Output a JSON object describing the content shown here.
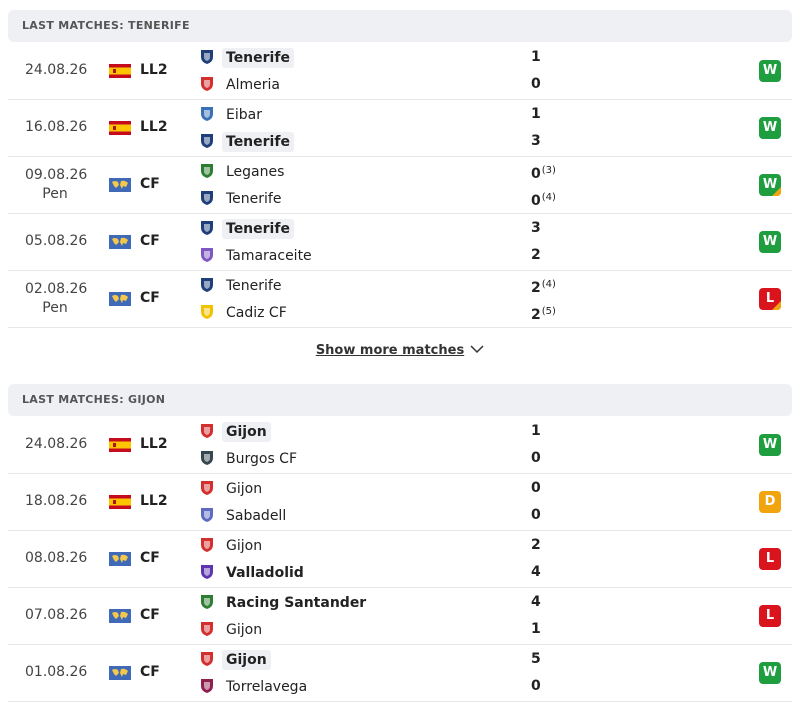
{
  "sections": [
    {
      "title": "LAST MATCHES: TENERIFE",
      "show_more": "Show more matches",
      "matches": [
        {
          "date": "24.08.26",
          "competition": "LL2",
          "flag": "spain",
          "home": {
            "name": "Tenerife",
            "bold": true,
            "highlight": true,
            "logo_color": "#1f3f7a"
          },
          "away": {
            "name": "Almeria",
            "bold": false,
            "highlight": false,
            "logo_color": "#d32f2f"
          },
          "home_score": 1,
          "away_score": 0,
          "result": "W",
          "result_color": "#1e9e3e"
        },
        {
          "date": "16.08.26",
          "competition": "LL2",
          "flag": "spain",
          "home": {
            "name": "Eibar",
            "bold": false,
            "highlight": false,
            "logo_color": "#3b6fb6"
          },
          "away": {
            "name": "Tenerife",
            "bold": true,
            "highlight": true,
            "logo_color": "#1f3f7a"
          },
          "home_score": 1,
          "away_score": 3,
          "result": "W",
          "result_color": "#1e9e3e"
        },
        {
          "date": "09.08.26",
          "status": "Pen",
          "competition": "CF",
          "flag": "world",
          "home": {
            "name": "Leganes",
            "bold": false,
            "highlight": false,
            "logo_color": "#2e7d32"
          },
          "away": {
            "name": "Tenerife",
            "bold": false,
            "highlight": false,
            "logo_color": "#1f3f7a"
          },
          "home_score": 0,
          "home_pen": "(3)",
          "away_score": 0,
          "away_pen": "(4)",
          "result": "W",
          "result_color": "#1e9e3e"
        },
        {
          "date": "05.08.26",
          "competition": "CF",
          "flag": "world",
          "home": {
            "name": "Tenerife",
            "bold": true,
            "highlight": true,
            "logo_color": "#1f3f7a"
          },
          "away": {
            "name": "Tamaraceite",
            "bold": false,
            "highlight": false,
            "logo_color": "#7e57c2"
          },
          "home_score": 3,
          "away_score": 2,
          "result": "W",
          "result_color": "#1e9e3e"
        },
        {
          "date": "02.08.26",
          "status": "Pen",
          "competition": "CF",
          "flag": "world",
          "home": {
            "name": "Tenerife",
            "bold": false,
            "highlight": false,
            "logo_color": "#1f3f7a"
          },
          "away": {
            "name": "Cadiz CF",
            "bold": false,
            "highlight": false,
            "logo_color": "#f2c200"
          },
          "home_score": 2,
          "home_pen": "(4)",
          "away_score": 2,
          "away_pen": "(5)",
          "result": "L",
          "result_color": "#d9141c"
        }
      ]
    },
    {
      "title": "LAST MATCHES: GIJON",
      "matches": [
        {
          "date": "24.08.26",
          "competition": "LL2",
          "flag": "spain",
          "home": {
            "name": "Gijon",
            "bold": true,
            "highlight": true,
            "logo_color": "#d32f2f"
          },
          "away": {
            "name": "Burgos CF",
            "bold": false,
            "highlight": false,
            "logo_color": "#37474f"
          },
          "home_score": 1,
          "away_score": 0,
          "result": "W",
          "result_color": "#1e9e3e"
        },
        {
          "date": "18.08.26",
          "competition": "LL2",
          "flag": "spain",
          "home": {
            "name": "Gijon",
            "bold": false,
            "highlight": false,
            "logo_color": "#d32f2f"
          },
          "away": {
            "name": "Sabadell",
            "bold": false,
            "highlight": false,
            "logo_color": "#5c6bc0"
          },
          "home_score": 0,
          "away_score": 0,
          "result": "D",
          "result_color": "#f2a40f"
        },
        {
          "date": "08.08.26",
          "competition": "CF",
          "flag": "world",
          "home": {
            "name": "Gijon",
            "bold": false,
            "highlight": false,
            "logo_color": "#d32f2f"
          },
          "away": {
            "name": "Valladolid",
            "bold": true,
            "highlight": false,
            "logo_color": "#5e35b1"
          },
          "home_score": 2,
          "away_score": 4,
          "result": "L",
          "result_color": "#d9141c"
        },
        {
          "date": "07.08.26",
          "competition": "CF",
          "flag": "world",
          "home": {
            "name": "Racing Santander",
            "bold": true,
            "highlight": false,
            "logo_color": "#2e7d32"
          },
          "away": {
            "name": "Gijon",
            "bold": false,
            "highlight": false,
            "logo_color": "#d32f2f"
          },
          "home_score": 4,
          "away_score": 1,
          "result": "L",
          "result_color": "#d9141c"
        },
        {
          "date": "01.08.26",
          "competition": "CF",
          "flag": "world",
          "home": {
            "name": "Gijon",
            "bold": true,
            "highlight": true,
            "logo_color": "#d32f2f"
          },
          "away": {
            "name": "Torrelavega",
            "bold": false,
            "highlight": false,
            "logo_color": "#8e1f4f"
          },
          "home_score": 5,
          "away_score": 0,
          "result": "W",
          "result_color": "#1e9e3e"
        }
      ]
    }
  ]
}
